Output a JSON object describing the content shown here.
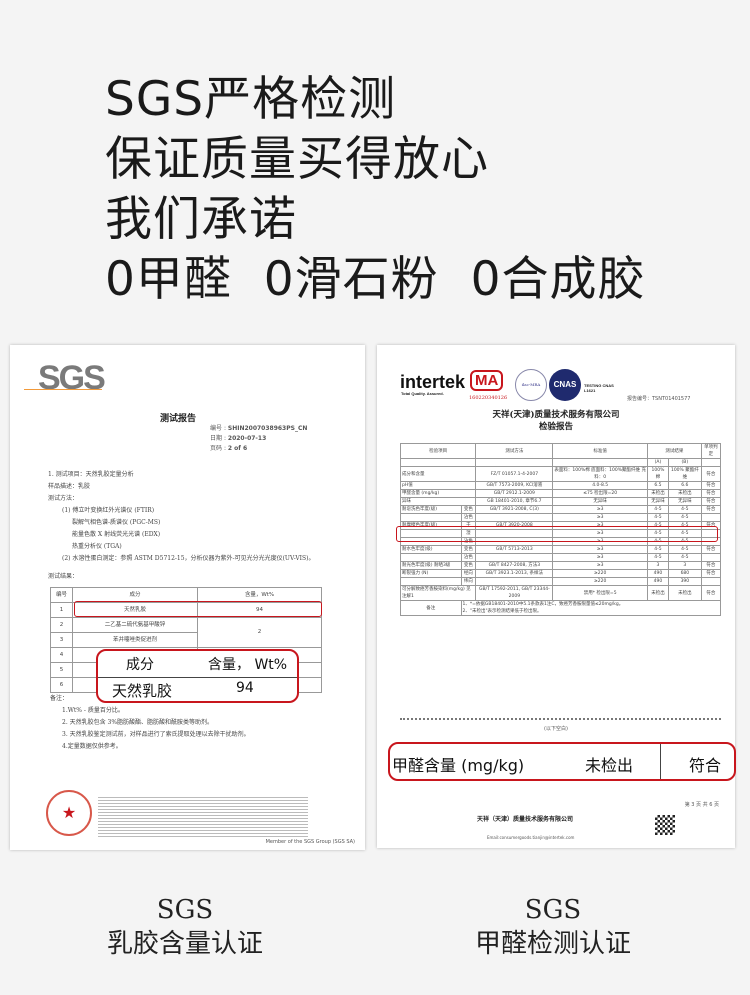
{
  "headline": [
    "SGS严格检测",
    "保证质量买得放心",
    "我们承诺",
    "0甲醛  0滑石粉  0合成胶"
  ],
  "left_doc": {
    "logo": "SGS",
    "title": "测试报告",
    "meta": [
      [
        "编号",
        ":",
        "SHIN2007038963PS_CN"
      ],
      [
        "日期",
        ":",
        "2020-07-13"
      ],
      [
        "页码",
        ":",
        "2 of 6"
      ]
    ],
    "body": [
      "1.  测试项目：天然乳胶定量分析",
      "样品描述：乳胶",
      "测试方法：",
      "(1) 傅立叶变换红外光谱仪 (FTIR)",
      "裂解气相色谱-质谱仪 (PGC-MS)",
      "能量色散 X 射线荧光光谱 (EDX)",
      "热重分析仪 (TGA)",
      "(2) 水溶性蛋白测定：参照 ASTM D5712-15，分析仪器为紫外-可见光分光光度仪(UV-VIS)。",
      "测试结果："
    ],
    "table_headers": [
      "编号",
      "成分",
      "含量，Wt%"
    ],
    "rows": [
      [
        "1",
        "天然乳胶",
        "94"
      ],
      [
        "2",
        "二乙基二硫代氨基甲酸锌",
        "2"
      ],
      [
        "3",
        "苯并噻唑类促进剂",
        ""
      ],
      [
        "4",
        "",
        ""
      ],
      [
        "5",
        "",
        ""
      ],
      [
        "6",
        "",
        ""
      ]
    ],
    "notes_label": "备注：",
    "notes": [
      "1.Wt% - 质量百分比。",
      "2. 天然乳胶包含 3%脂肪酸酯、脂肪酸和酰胺类等助剂。",
      "3. 天然乳胶鉴定测试前，对样品进行了索氏提取处理以去除干扰助剂。",
      "4.定量数据仅供参考。"
    ],
    "footer": "Member of the SGS Group (SGS SA)",
    "overlay": {
      "h1": "成分",
      "h2": "含量， Wt%",
      "v1": "天然乳胶",
      "v2": "94"
    }
  },
  "right_doc": {
    "logo": "intertek",
    "tagline": "Total Quality. Assured.",
    "ma": "MA",
    "ma_no": "160220340126",
    "ilac": "ilac-MRA",
    "cnas": "CNAS",
    "cnas_text": "TESTING CNAS L1621",
    "report_no": "报告编号：TSNT01401577",
    "company": "天祥(天津)质量技术服务有限公司",
    "title": "检验报告",
    "headers": [
      "检验项目",
      "测试方法",
      "标准值",
      "测试结果",
      "单项判定"
    ],
    "sub_headers": [
      "(A)",
      "(B)"
    ],
    "rows": [
      [
        "成分和含量",
        "",
        "FZ/T 01057.1-4-2007",
        "表面料：100%棉 底面料：100%聚酯纤维 充料：0",
        "100% 棉",
        "100% 聚酯纤维",
        "符合"
      ],
      [
        "pH值",
        "",
        "GB/T 7573-2009, KCl溶液",
        "4.0-8.5",
        "6.5",
        "6.6",
        "符合"
      ],
      [
        "甲醛含量 (mg/kg)",
        "",
        "GB/T 2912.1-2009",
        "≤75 检出限=20",
        "未检出",
        "未检出",
        "符合"
      ],
      [
        "异味",
        "",
        "GB 18401-2010, 章节6.7",
        "无异味",
        "无异味",
        "无异味",
        "符合"
      ],
      [
        "耐皂洗色牢度(级)",
        "变色",
        "GB/T 3921-2008, C(3)",
        "≥3",
        "4-5",
        "4-5",
        "符合"
      ],
      [
        "",
        "沾色",
        "",
        "≥3",
        "4-5",
        "4-5",
        ""
      ],
      [
        "耐摩擦色牢度(级)",
        "干",
        "GB/T 3920-2008",
        "≥3",
        "4-5",
        "4-5",
        "符合"
      ],
      [
        "",
        "湿",
        "",
        "≥3",
        "4-5",
        "4-5",
        ""
      ],
      [
        "",
        "沾色",
        "",
        "≥3",
        "4-5",
        "4-5",
        ""
      ],
      [
        "耐水色牢度(级)",
        "变色",
        "GB/T 5713-2013",
        "≥3",
        "4-5",
        "4-5",
        "符合"
      ],
      [
        "",
        "沾色",
        "",
        "≥3",
        "4-5",
        "4-5",
        ""
      ],
      [
        "耐光色牢度(级) 耐晒3级",
        "变色",
        "GB/T 8427-2008, 方法3",
        "≥3",
        "3",
        "3",
        "符合"
      ],
      [
        "断裂强力 (N)",
        "经向",
        "GB/T 3923.1-2013, 条样法",
        "≥220",
        "490",
        "680",
        "符合"
      ],
      [
        "",
        "纬向",
        "",
        "≥220",
        "490",
        "390",
        ""
      ],
      [
        "可分解致癌芳香胺染料(mg/kg) 见注解1",
        "",
        "GB/T 17592-2011, GB/T 23344-2009",
        "禁用* 检出限=5",
        "未检出",
        "未检出",
        "符合"
      ]
    ],
    "notes_label": "备注",
    "notes": [
      "1、*=依据GB18401-2010中5.1条款表1注C，致癌芳香胺限量值≤20mg/kg。",
      "2、\"未检出\"表示检测结果低于检出限。"
    ],
    "blank": "(以下空白)",
    "page": "第 3 页  共 6 页",
    "footer_company": "天祥（天津）质量技术服务有限公司",
    "footer_email": "Email:consumergoods.tianjin@intertek.com",
    "overlay": {
      "item": "甲醛含量 (mg/kg)",
      "result": "未检出",
      "verdict": "符合"
    }
  },
  "captions": {
    "left": [
      "SGS",
      "乳胶含量认证"
    ],
    "right": [
      "SGS",
      "甲醛检测认证"
    ]
  },
  "colors": {
    "accent_red": "#c8161d",
    "sgs_gray": "#7a7a7a",
    "sgs_orange": "#f29a3a"
  }
}
